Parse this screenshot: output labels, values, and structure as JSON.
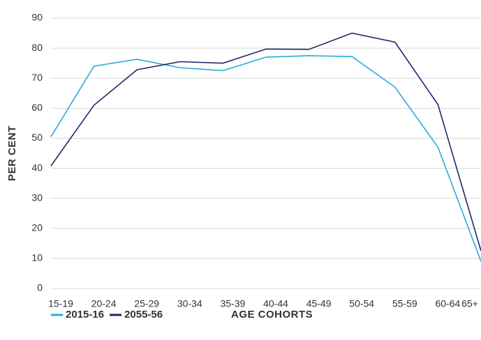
{
  "chart_data": {
    "type": "line",
    "categories": [
      "15-19",
      "20-24",
      "25-29",
      "30-34",
      "35-39",
      "40-44",
      "45-49",
      "50-54",
      "55-59",
      "60-64",
      "65+"
    ],
    "series": [
      {
        "name": "2015-16",
        "color": "#2aabdb",
        "values": [
          50.5,
          74,
          76.3,
          73.5,
          72.5,
          77,
          77.5,
          77.2,
          67,
          47,
          9
        ]
      },
      {
        "name": "2055-56",
        "color": "#1c2a6b",
        "values": [
          40.8,
          61,
          72.8,
          75.5,
          75,
          79.7,
          79.6,
          85,
          82,
          61.2,
          12.5
        ]
      }
    ],
    "ylabel": "PER CENT",
    "xlabel": "AGE COHORTS",
    "ylim": [
      0,
      90
    ],
    "yticks": [
      0,
      10,
      20,
      30,
      40,
      50,
      60,
      70,
      80,
      90
    ],
    "grid": true
  }
}
